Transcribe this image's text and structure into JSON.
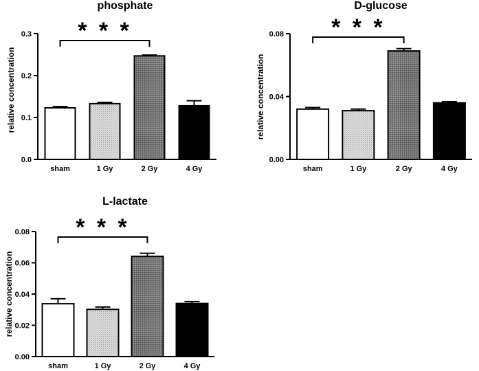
{
  "chart_data": [
    {
      "type": "bar",
      "title": "phosphate",
      "ylabel": "relative concentration",
      "xlabel": "",
      "categories": [
        "sham",
        "1 Gy",
        "2 Gy",
        "4 Gy"
      ],
      "values": [
        0.123,
        0.133,
        0.247,
        0.128
      ],
      "errors": [
        0.003,
        0.003,
        0.002,
        0.012
      ],
      "fills": [
        "white",
        "light-grey-dots",
        "dark-grey-dots",
        "black"
      ],
      "ylim": [
        0,
        0.3
      ],
      "yticks": [
        "0.0",
        "0.1",
        "0.2",
        "0.3"
      ],
      "significance": {
        "from": "sham",
        "to": "2 Gy",
        "label": "***"
      }
    },
    {
      "type": "bar",
      "title": "D-glucose",
      "ylabel": "relative concentration",
      "xlabel": "",
      "categories": [
        "sham",
        "1 Gy",
        "2 Gy",
        "4 Gy"
      ],
      "values": [
        0.032,
        0.031,
        0.069,
        0.036
      ],
      "errors": [
        0.001,
        0.001,
        0.0015,
        0.0007
      ],
      "fills": [
        "white",
        "light-grey-dots",
        "dark-grey-dots",
        "black"
      ],
      "ylim": [
        0,
        0.08
      ],
      "yticks": [
        "0.00",
        "0.04",
        "0.08"
      ],
      "significance": {
        "from": "sham",
        "to": "2 Gy",
        "label": "***"
      }
    },
    {
      "type": "bar",
      "title": "L-lactate",
      "ylabel": "relative concentration",
      "xlabel": "",
      "categories": [
        "sham",
        "1 Gy",
        "2 Gy",
        "4 Gy"
      ],
      "values": [
        0.0338,
        0.0302,
        0.0641,
        0.034
      ],
      "errors": [
        0.0032,
        0.0015,
        0.002,
        0.0012
      ],
      "fills": [
        "white",
        "light-grey-dots",
        "dark-grey-dots",
        "black"
      ],
      "ylim": [
        0,
        0.08
      ],
      "yticks": [
        "0.00",
        "0.02",
        "0.04",
        "0.06",
        "0.08"
      ],
      "significance": {
        "from": "sham",
        "to": "2 Gy",
        "label": "***"
      }
    }
  ]
}
